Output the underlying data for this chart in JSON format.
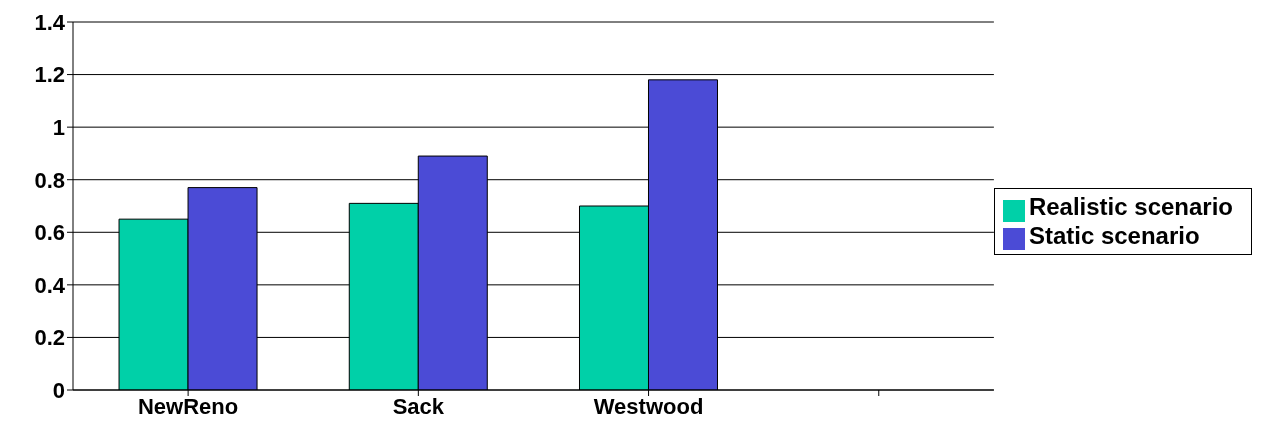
{
  "chart_data": {
    "type": "bar",
    "categories": [
      "NewReno",
      "Sack",
      "Westwood",
      null
    ],
    "series": [
      {
        "name": "Realistic scenario",
        "color": "#00d0a8",
        "values": [
          0.65,
          0.71,
          0.7,
          null
        ]
      },
      {
        "name": "Static scenario",
        "color": "#4b4bd6",
        "values": [
          0.77,
          0.89,
          1.18,
          null
        ]
      }
    ],
    "ylim": [
      0,
      1.4
    ],
    "yticks": [
      0,
      0.2,
      0.4,
      0.6,
      0.8,
      1,
      1.2,
      1.4
    ],
    "grid": "y",
    "legend": "right"
  }
}
